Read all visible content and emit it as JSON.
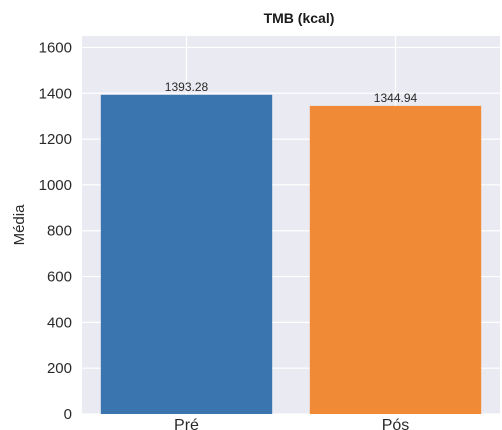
{
  "chart_data": {
    "type": "bar",
    "title": "TMB (kcal)",
    "xlabel": "",
    "ylabel": "Média",
    "categories": [
      "Pré",
      "Pós"
    ],
    "values": [
      1393.28,
      1344.94
    ],
    "data_labels": [
      "1393.28",
      "1344.94"
    ],
    "colors": [
      "#3a75b0",
      "#f08a36"
    ],
    "ylim": [
      0,
      1650
    ],
    "yticks": [
      0,
      200,
      400,
      600,
      800,
      1000,
      1200,
      1400,
      1600
    ],
    "grid": true,
    "plot_background": "#eaeaf2",
    "grid_color": "#ffffff"
  }
}
